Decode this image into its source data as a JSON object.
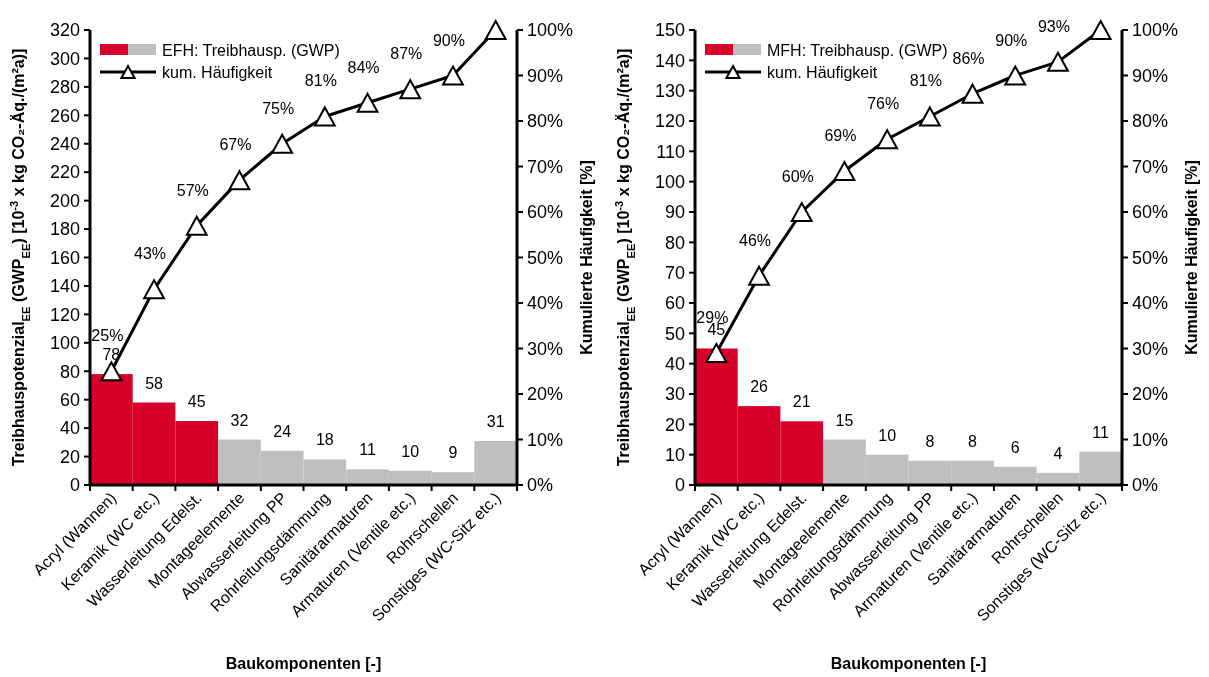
{
  "chart_data": [
    {
      "type": "bar",
      "xlabel": "Baukomponenten [-]",
      "ylabel": "Treibhauspotenzial$_{EE}$ (GWP$_{EE}$) [10$^{-3}$ x kg CO₂-Äq./(m²a)]",
      "y2label": "Kumulierte Häufigkeit [%]",
      "categories": [
        "Acryl (Wannen)",
        "Keramik (WC etc.)",
        "Wasserleitung Edelst.",
        "Montageelemente",
        "Abwasserleitung PP",
        "Rohrleitungsdämmung",
        "Sanitärarmaturen",
        "Armaturen (Ventile etc.)",
        "Rohrschellen",
        "Sonstiges (WC-Sitz etc.)"
      ],
      "series": [
        {
          "name": "EFH: Treibhausp. (GWP)",
          "values": [
            78,
            58,
            45,
            32,
            24,
            18,
            11,
            10,
            9,
            31
          ],
          "colors": [
            "#d7002a",
            "#d7002a",
            "#d7002a",
            "#bfbfbf",
            "#bfbfbf",
            "#bfbfbf",
            "#bfbfbf",
            "#bfbfbf",
            "#bfbfbf",
            "#bfbfbf"
          ],
          "value_labels": [
            "78",
            "58",
            "45",
            "32",
            "24",
            "18",
            "11",
            "10",
            "9",
            "31"
          ]
        },
        {
          "name": "kum. Häufigkeit",
          "type": "line",
          "axis": "y2",
          "color": "#000000",
          "values": [
            25,
            43,
            57,
            67,
            75,
            81,
            84,
            87,
            90,
            100
          ],
          "value_labels": [
            "25%",
            "43%",
            "57%",
            "67%",
            "75%",
            "81%",
            "84%",
            "87%",
            "90%",
            null
          ]
        }
      ],
      "ylim": [
        0,
        320
      ],
      "yticks": [
        0,
        20,
        40,
        60,
        80,
        100,
        120,
        140,
        160,
        180,
        200,
        220,
        240,
        260,
        280,
        300,
        320
      ],
      "y2lim": [
        0,
        100
      ],
      "y2ticks": [
        {
          "value": 0,
          "label": "0%"
        },
        {
          "value": 10,
          "label": "10%"
        },
        {
          "value": 20,
          "label": "20%"
        },
        {
          "value": 30,
          "label": "30%"
        },
        {
          "value": 40,
          "label": "40%"
        },
        {
          "value": 50,
          "label": "50%"
        },
        {
          "value": 60,
          "label": "60%"
        },
        {
          "value": 70,
          "label": "70%"
        },
        {
          "value": 80,
          "label": "80%"
        },
        {
          "value": 90,
          "label": "90%"
        },
        {
          "value": 100,
          "label": "100%"
        }
      ],
      "marker": "triangle",
      "legend": "top left"
    },
    {
      "type": "bar",
      "xlabel": "Baukomponenten [-]",
      "ylabel": "Treibhauspotenzial$_{EE}$ (GWP$_{EE}$) [10$^{-3}$ x kg CO₂-Äq./(m²a)]",
      "y2label": "Kumulierte Häufigkeit [%]",
      "categories": [
        "Acryl (Wannen)",
        "Keramik (WC etc.)",
        "Wasserleitung Edelst.",
        "Montageelemente",
        "Rohrleitungsdämmung",
        "Abwasserleitung PP",
        "Armaturen (Ventile etc.)",
        "Sanitärarmaturen",
        "Rohrschellen",
        "Sonstiges (WC-Sitz etc.)"
      ],
      "series": [
        {
          "name": "MFH: Treibhausp. (GWP)",
          "values": [
            45,
            26,
            21,
            15,
            10,
            8,
            8,
            6,
            4,
            11
          ],
          "colors": [
            "#d7002a",
            "#d7002a",
            "#d7002a",
            "#bfbfbf",
            "#bfbfbf",
            "#bfbfbf",
            "#bfbfbf",
            "#bfbfbf",
            "#bfbfbf",
            "#bfbfbf"
          ],
          "value_labels": [
            "45",
            "26",
            "21",
            "15",
            "10",
            "8",
            "8",
            "6",
            "4",
            "11"
          ]
        },
        {
          "name": "kum. Häufigkeit",
          "type": "line",
          "axis": "y2",
          "color": "#000000",
          "values": [
            29,
            46,
            60,
            69,
            76,
            81,
            86,
            90,
            93,
            100
          ],
          "value_labels": [
            "29%",
            "46%",
            "60%",
            "69%",
            "76%",
            "81%",
            "86%",
            "90%",
            "93%",
            null
          ]
        }
      ],
      "ylim": [
        0,
        150
      ],
      "yticks": [
        0,
        10,
        20,
        30,
        40,
        50,
        60,
        70,
        80,
        90,
        100,
        110,
        120,
        130,
        140,
        150
      ],
      "y2lim": [
        0,
        100
      ],
      "y2ticks": [
        {
          "value": 0,
          "label": "0%"
        },
        {
          "value": 10,
          "label": "10%"
        },
        {
          "value": 20,
          "label": "20%"
        },
        {
          "value": 30,
          "label": "30%"
        },
        {
          "value": 40,
          "label": "40%"
        },
        {
          "value": 50,
          "label": "50%"
        },
        {
          "value": 60,
          "label": "60%"
        },
        {
          "value": 70,
          "label": "70%"
        },
        {
          "value": 80,
          "label": "80%"
        },
        {
          "value": 90,
          "label": "90%"
        },
        {
          "value": 100,
          "label": "100%"
        }
      ],
      "marker": "triangle",
      "legend": "top left"
    }
  ]
}
